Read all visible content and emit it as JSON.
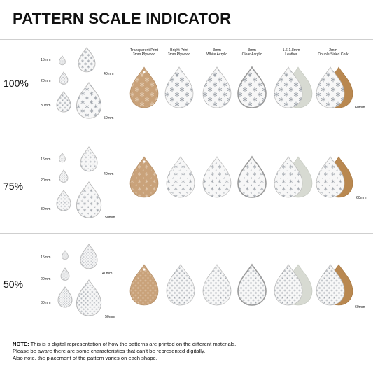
{
  "title": "PATTERN SCALE INDICATOR",
  "headers": [
    {
      "line1": "Transparent Print",
      "line2": "3mm Plywood"
    },
    {
      "line1": "Bright Print",
      "line2": "3mm Plywood"
    },
    {
      "line1": "3mm",
      "line2": "White Acrylic"
    },
    {
      "line1": "3mm",
      "line2": "Clear Acrylic"
    },
    {
      "line1": "1.6-1.8mm",
      "line2": "Leather"
    },
    {
      "line1": "2mm",
      "line2": "Double Sided Cork"
    }
  ],
  "rows": [
    {
      "scale": "100%",
      "size15": "15mm",
      "size20": "20mm",
      "size30": "30mm",
      "size40": "40mm",
      "size50": "50mm",
      "size60": "60mm"
    },
    {
      "scale": "75%",
      "size15": "15mm",
      "size20": "20mm",
      "size30": "30mm",
      "size40": "40mm",
      "size50": "50mm",
      "size60": "60mm"
    },
    {
      "scale": "50%",
      "size15": "15mm",
      "size20": "20mm",
      "size30": "30mm",
      "size40": "40mm",
      "size50": "50mm",
      "size60": "60mm"
    }
  ],
  "note": {
    "label": "NOTE:",
    "line1": "This is a digital representation of how the patterns are printed on the different materials.",
    "line2": "Please be aware there are some characteristics that can't be represented digitally.",
    "line3": "Also note, the placement of the pattern varies on each shape."
  },
  "colors": {
    "plywood": "#c9a27a",
    "white": "#f7f7f7",
    "snowflake": "#9aa0a8",
    "leatherBack": "#d7dad2",
    "corkBack": "#b98850",
    "outline": "#bdbdbd"
  },
  "icons": [
    "snowflake-pattern-icon",
    "teardrop-earring-icon"
  ]
}
